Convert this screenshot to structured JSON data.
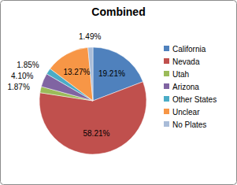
{
  "chart_data": {
    "type": "pie",
    "title": "Combined",
    "categories": [
      "California",
      "Nevada",
      "Utah",
      "Arizona",
      "Other States",
      "Unclear",
      "No Plates"
    ],
    "values": [
      19.21,
      58.21,
      1.87,
      4.1,
      1.85,
      13.27,
      1.49
    ],
    "value_labels": [
      "19.21%",
      "58.21%",
      "1.87%",
      "4.10%",
      "1.85%",
      "13.27%",
      "1.49%"
    ],
    "colors": [
      "#4f81bd",
      "#c0504d",
      "#9bbb59",
      "#8064a2",
      "#4bacc6",
      "#f79646",
      "#a9bcd8"
    ],
    "legend": "right",
    "data_labels": true
  }
}
